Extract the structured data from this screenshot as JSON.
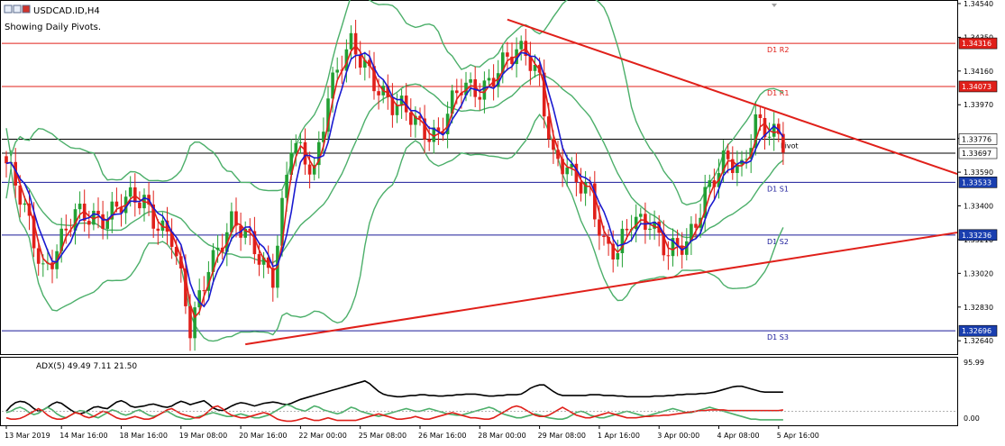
{
  "header": {
    "symbol_title": "USDCAD.ID,H4",
    "pivot_note": "Showing Daily Pivots."
  },
  "colors": {
    "background": "#ffffff",
    "axis": "#000000",
    "candle_up": "#22a033",
    "candle_down": "#e0201a",
    "bollinger": "#4caf6a",
    "fast_ma": "#e0201a",
    "slow_ma": "#1a1ad0",
    "trendline": "#e0201a",
    "resistance": "#e0201a",
    "support": "#1a1a99",
    "pivot": "#000000",
    "adx_main": "#000000",
    "adx_plus": "#4caf6a",
    "adx_minus": "#e0201a"
  },
  "chart_data": [
    {
      "type": "candlestick",
      "title": "USDCAD.ID,H4",
      "price_axis": {
        "range": [
          1.3257,
          1.3455
        ],
        "ticks": [
          "1.34540",
          "1.34350",
          "1.34160",
          "1.33970",
          "1.33780",
          "1.33590",
          "1.33400",
          "1.33210",
          "1.33020",
          "1.32830",
          "1.32640"
        ]
      },
      "time_axis": {
        "labels": [
          "13 Mar 2019",
          "14 Mar 16:00",
          "18 Mar 16:00",
          "19 Mar 08:00",
          "20 Mar 16:00",
          "22 Mar 00:00",
          "25 Mar 08:00",
          "26 Mar 16:00",
          "28 Mar 00:00",
          "29 Mar 08:00",
          "1 Apr 16:00",
          "3 Apr 00:00",
          "4 Apr 08:00",
          "5 Apr 16:00"
        ],
        "bars_total": 170
      },
      "key_closes": [
        {
          "bar": 0,
          "close": 1.3364
        },
        {
          "bar": 8,
          "close": 1.3306
        },
        {
          "bar": 15,
          "close": 1.3332
        },
        {
          "bar": 23,
          "close": 1.3338
        },
        {
          "bar": 30,
          "close": 1.3343
        },
        {
          "bar": 36,
          "close": 1.3322
        },
        {
          "bar": 40,
          "close": 1.3268
        },
        {
          "bar": 44,
          "close": 1.331
        },
        {
          "bar": 49,
          "close": 1.3328
        },
        {
          "bar": 54,
          "close": 1.3318
        },
        {
          "bar": 58,
          "close": 1.3302
        },
        {
          "bar": 62,
          "close": 1.3372
        },
        {
          "bar": 67,
          "close": 1.3362
        },
        {
          "bar": 70,
          "close": 1.3405
        },
        {
          "bar": 75,
          "close": 1.3428
        },
        {
          "bar": 79,
          "close": 1.3418
        },
        {
          "bar": 84,
          "close": 1.3395
        },
        {
          "bar": 89,
          "close": 1.3388
        },
        {
          "bar": 94,
          "close": 1.3381
        },
        {
          "bar": 99,
          "close": 1.3405
        },
        {
          "bar": 103,
          "close": 1.3408
        },
        {
          "bar": 108,
          "close": 1.3418
        },
        {
          "bar": 113,
          "close": 1.3428
        },
        {
          "bar": 116,
          "close": 1.3415
        },
        {
          "bar": 119,
          "close": 1.3365
        },
        {
          "bar": 123,
          "close": 1.3355
        },
        {
          "bar": 127,
          "close": 1.3352
        },
        {
          "bar": 130,
          "close": 1.3318
        },
        {
          "bar": 133,
          "close": 1.331
        },
        {
          "bar": 136,
          "close": 1.3332
        },
        {
          "bar": 140,
          "close": 1.3335
        },
        {
          "bar": 144,
          "close": 1.331
        },
        {
          "bar": 148,
          "close": 1.3318
        },
        {
          "bar": 152,
          "close": 1.335
        },
        {
          "bar": 156,
          "close": 1.3362
        },
        {
          "bar": 160,
          "close": 1.336
        },
        {
          "bar": 163,
          "close": 1.3392
        },
        {
          "bar": 166,
          "close": 1.3382
        },
        {
          "bar": 169,
          "close": 1.3372
        }
      ],
      "levels": [
        {
          "name": "D1 R2",
          "value": 1.34316,
          "label": "1.34316",
          "kind": "resistance"
        },
        {
          "name": "D1 R1",
          "value": 1.34073,
          "label": "1.34073",
          "kind": "resistance"
        },
        {
          "name": "Pivot",
          "value": 1.33776,
          "label": "1.33776",
          "kind": "pivot"
        },
        {
          "name": "",
          "value": 1.33697,
          "label": "1.33697",
          "kind": "current"
        },
        {
          "name": "D1 S1",
          "value": 1.33533,
          "label": "1.33533",
          "kind": "support"
        },
        {
          "name": "D1 S2",
          "value": 1.33236,
          "label": "1.33236",
          "kind": "support"
        },
        {
          "name": "D1 S3",
          "value": 1.32696,
          "label": "1.32696",
          "kind": "support"
        }
      ],
      "trendlines": [
        {
          "from": {
            "bar": 109,
            "price": 1.3445
          },
          "to": {
            "bar": 209,
            "price": 1.3358
          }
        },
        {
          "from": {
            "bar": 52,
            "price": 1.3262
          },
          "to": {
            "bar": 209,
            "price": 1.3325
          }
        }
      ],
      "grid": false
    },
    {
      "type": "line",
      "title": "ADX(5) 49.49 7.11 21.50",
      "y_ticks": [
        "95.99",
        "0.00"
      ],
      "ylim": [
        0,
        100
      ],
      "series": [
        {
          "name": "ADX",
          "values": [
            20,
            28,
            33,
            35,
            34,
            30,
            24,
            20,
            22,
            26,
            31,
            34,
            32,
            27,
            22,
            18,
            16,
            18,
            22,
            26,
            27,
            25,
            24,
            29,
            34,
            36,
            33,
            28,
            26,
            27,
            28,
            30,
            31,
            29,
            27,
            26,
            28,
            32,
            35,
            33,
            30,
            32,
            34,
            36,
            31,
            25,
            22,
            21,
            24,
            28,
            31,
            33,
            32,
            30,
            28,
            30,
            32,
            33,
            34,
            33,
            31,
            30,
            32,
            35,
            38,
            40,
            42,
            44,
            46,
            48,
            50,
            52,
            54,
            56,
            58,
            60,
            62,
            64,
            66,
            62,
            56,
            50,
            46,
            44,
            43,
            42,
            42,
            43,
            44,
            44,
            45,
            45,
            44,
            44,
            43,
            43,
            44,
            44,
            45,
            45,
            46,
            46,
            46,
            45,
            44,
            43,
            43,
            44,
            44,
            45,
            45,
            45,
            46,
            50,
            55,
            58,
            60,
            60,
            55,
            50,
            46,
            44,
            44,
            44,
            44,
            44,
            44,
            45,
            45,
            45,
            44,
            44,
            44,
            43,
            43,
            42,
            42,
            42,
            42,
            42,
            42,
            43,
            43,
            43,
            44,
            44,
            45,
            45,
            46,
            46,
            46,
            47,
            47,
            48,
            49,
            51,
            53,
            55,
            57,
            58,
            58,
            56,
            54,
            52,
            50,
            49,
            49,
            49,
            49,
            49
          ]
        },
        {
          "name": "+DI",
          "values": [
            18,
            20,
            24,
            26,
            23,
            18,
            15,
            17,
            22,
            26,
            22,
            16,
            12,
            10,
            14,
            18,
            21,
            20,
            16,
            12,
            10,
            14,
            18,
            22,
            20,
            16,
            14,
            16,
            20,
            22,
            18,
            14,
            12,
            14,
            18,
            20,
            16,
            12,
            10,
            8,
            8,
            10,
            12,
            14,
            16,
            18,
            16,
            14,
            12,
            12,
            14,
            16,
            14,
            12,
            10,
            10,
            12,
            14,
            18,
            22,
            26,
            30,
            28,
            24,
            22,
            20,
            24,
            28,
            26,
            22,
            20,
            18,
            16,
            18,
            22,
            26,
            24,
            20,
            18,
            16,
            14,
            12,
            14,
            16,
            18,
            20,
            22,
            24,
            22,
            20,
            20,
            22,
            24,
            22,
            20,
            18,
            16,
            15,
            14,
            14,
            16,
            18,
            20,
            22,
            24,
            26,
            24,
            20,
            16,
            14,
            12,
            10,
            10,
            12,
            14,
            16,
            14,
            12,
            10,
            9,
            8,
            8,
            10,
            14,
            18,
            20,
            18,
            14,
            12,
            10,
            10,
            12,
            14,
            16,
            18,
            20,
            18,
            16,
            14,
            12,
            14,
            16,
            18,
            20,
            22,
            24,
            22,
            20,
            18,
            18,
            20,
            22,
            24,
            26,
            24,
            22,
            20,
            18,
            16,
            14,
            12,
            10,
            8,
            8,
            7,
            7,
            7,
            7,
            7,
            7
          ]
        },
        {
          "name": "-DI",
          "values": [
            10,
            8,
            8,
            9,
            12,
            16,
            20,
            24,
            20,
            14,
            10,
            8,
            8,
            10,
            14,
            18,
            16,
            12,
            10,
            12,
            16,
            20,
            18,
            14,
            10,
            8,
            8,
            10,
            12,
            10,
            8,
            8,
            10,
            14,
            18,
            22,
            24,
            20,
            16,
            14,
            12,
            10,
            10,
            14,
            20,
            26,
            28,
            24,
            18,
            14,
            12,
            10,
            10,
            12,
            14,
            16,
            18,
            16,
            12,
            8,
            6,
            5,
            5,
            6,
            8,
            10,
            8,
            6,
            6,
            8,
            10,
            8,
            6,
            6,
            6,
            6,
            6,
            8,
            10,
            12,
            14,
            16,
            14,
            12,
            10,
            8,
            8,
            9,
            10,
            12,
            10,
            8,
            8,
            10,
            12,
            14,
            16,
            18,
            16,
            14,
            12,
            10,
            10,
            9,
            8,
            8,
            10,
            14,
            18,
            22,
            26,
            28,
            26,
            22,
            18,
            14,
            12,
            12,
            14,
            18,
            22,
            26,
            22,
            18,
            14,
            12,
            10,
            10,
            12,
            14,
            16,
            18,
            16,
            14,
            12,
            10,
            10,
            10,
            11,
            12,
            12,
            13,
            13,
            14,
            14,
            15,
            16,
            17,
            18,
            19,
            20,
            21,
            21,
            22,
            22,
            22,
            22,
            21,
            21,
            21,
            21,
            21,
            21,
            21,
            21,
            21,
            21,
            21,
            21,
            22
          ]
        }
      ]
    }
  ]
}
